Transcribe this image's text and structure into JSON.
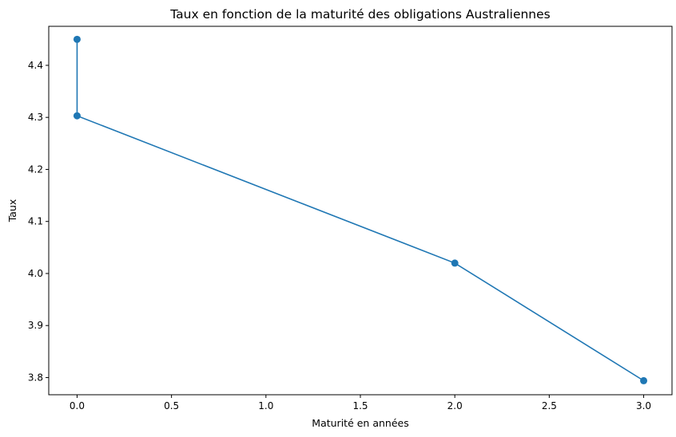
{
  "chart_data": {
    "type": "line",
    "title": "Taux en fonction de la maturité des obligations Australiennes",
    "xlabel": "Maturité en années",
    "ylabel": "Taux",
    "xlim": [
      -0.15,
      3.15
    ],
    "ylim": [
      3.767,
      4.475
    ],
    "xticks": [
      0.0,
      0.5,
      1.0,
      1.5,
      2.0,
      2.5,
      3.0
    ],
    "xtick_labels": [
      "0.0",
      "0.5",
      "1.0",
      "1.5",
      "2.0",
      "2.5",
      "3.0"
    ],
    "yticks": [
      3.8,
      3.9,
      4.0,
      4.1,
      4.2,
      4.3,
      4.4
    ],
    "ytick_labels": [
      "3.8",
      "3.9",
      "4.0",
      "4.1",
      "4.2",
      "4.3",
      "4.4"
    ],
    "grid": false,
    "legend": false,
    "series": [
      {
        "color": "#1f77b4",
        "marker": "circle",
        "points": [
          {
            "x": 0.0,
            "y": 4.45
          },
          {
            "x": 0.0,
            "y": 4.303
          },
          {
            "x": 2.0,
            "y": 4.02
          },
          {
            "x": 3.0,
            "y": 3.794
          }
        ]
      }
    ]
  }
}
